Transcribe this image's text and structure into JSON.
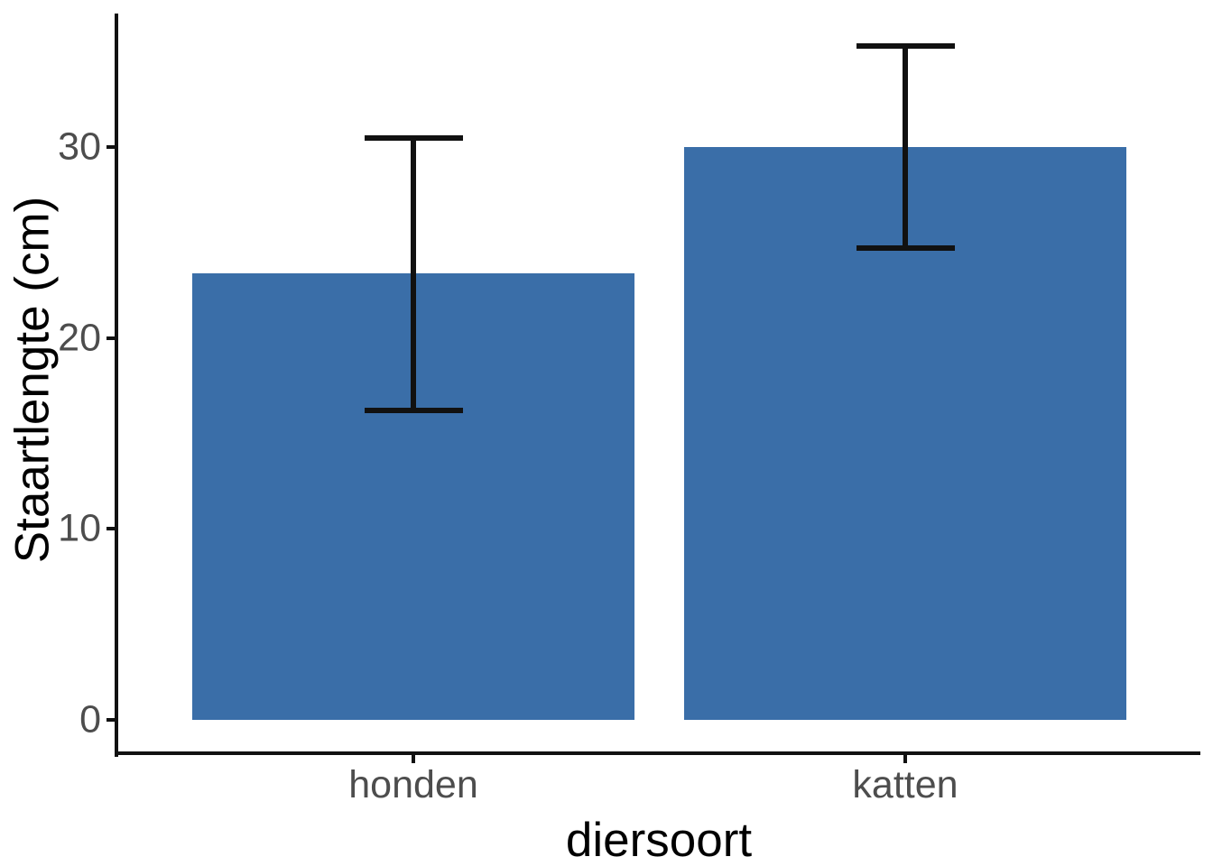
{
  "chart_data": {
    "type": "bar",
    "title": "",
    "xlabel": "diersoort",
    "ylabel": "Staartlengte (cm)",
    "categories": [
      "honden",
      "katten"
    ],
    "values": [
      23.4,
      30.0
    ],
    "error_bars": [
      {
        "ymin": 16.2,
        "ymax": 30.5
      },
      {
        "ymin": 24.7,
        "ymax": 35.3
      }
    ],
    "yticks": [
      0,
      10,
      20,
      30
    ],
    "ylim": [
      -1.76,
      37.0
    ],
    "grid": "off",
    "legend": "none",
    "bar_width_units": 0.9,
    "errorbar_cap_units": 0.2,
    "colors": {
      "bar_fill": "#3A6EA8",
      "errorbar": "#111111",
      "axis_line": "#111111",
      "tick_label": "#4D4D4D",
      "axis_title": "#000000",
      "background": "#FFFFFF"
    }
  }
}
